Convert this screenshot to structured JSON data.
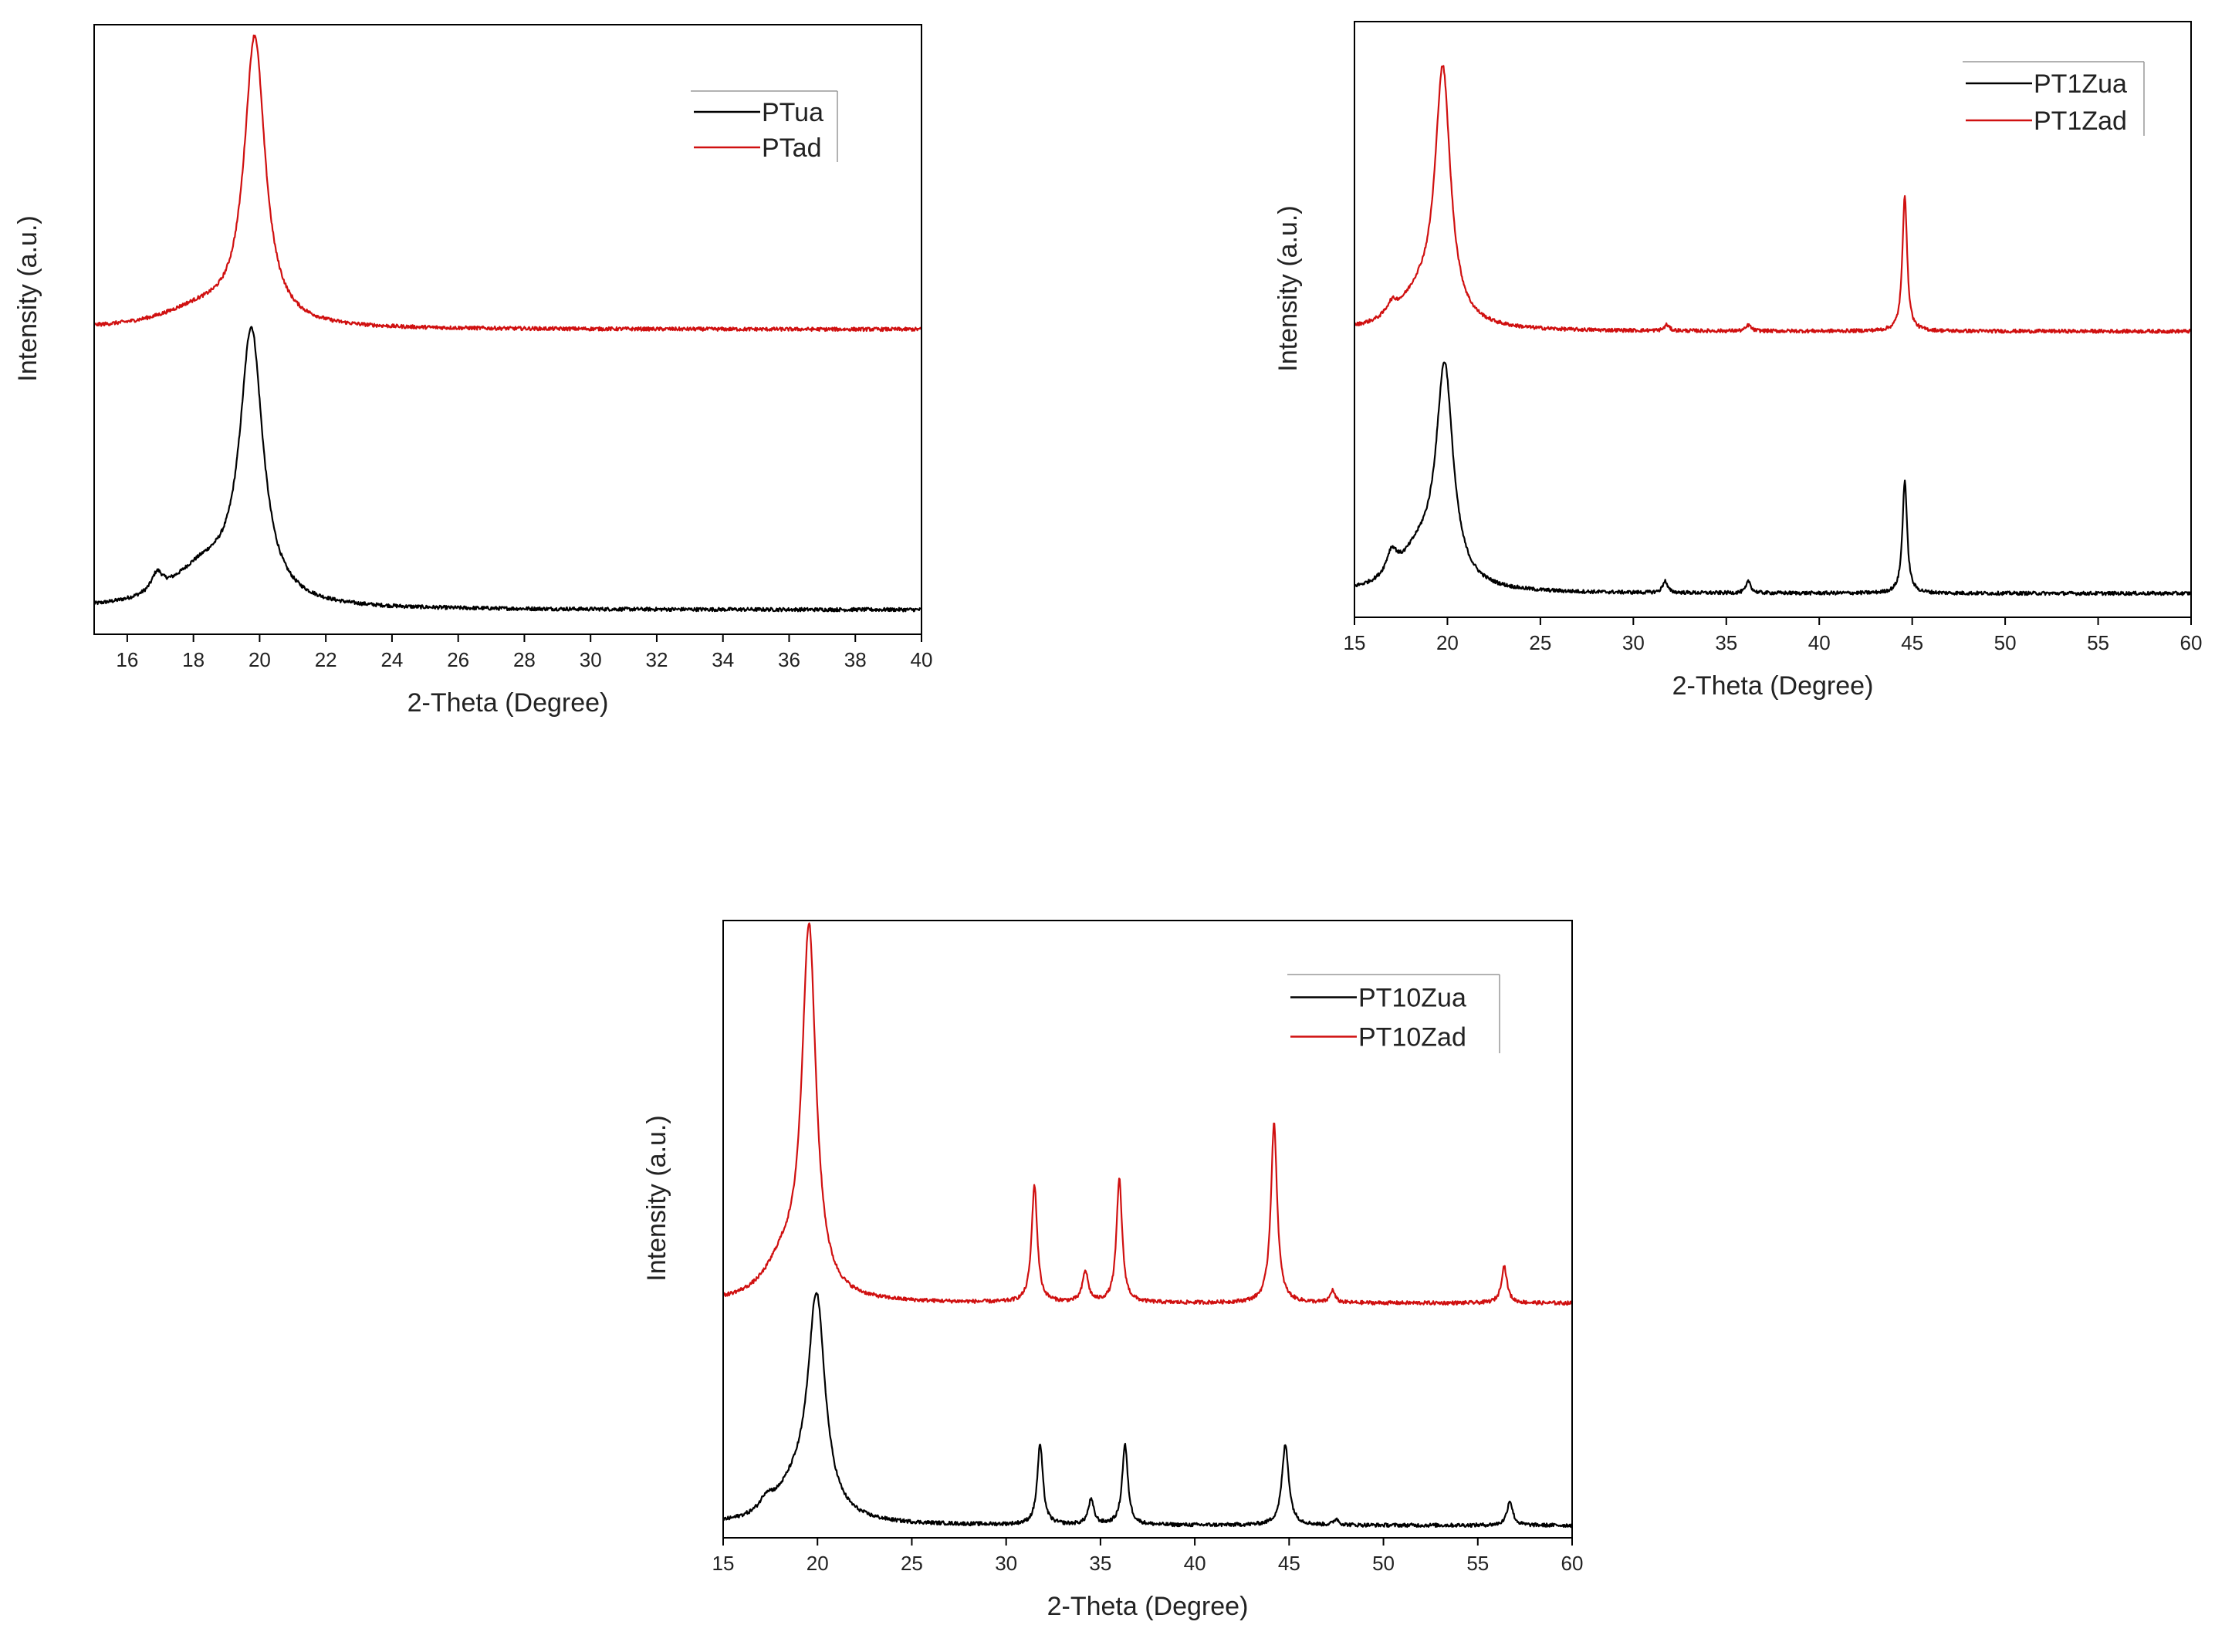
{
  "chart_data": [
    {
      "type": "line",
      "title": "",
      "xlabel": "2-Theta (Degree)",
      "ylabel": "Intensity (a.u.)",
      "xlim": [
        15,
        40
      ],
      "ylim": [
        0,
        1
      ],
      "y_ticks_shown": false,
      "grid": false,
      "legend_position": "top-right",
      "x_ticks": [
        16,
        18,
        20,
        22,
        24,
        26,
        28,
        30,
        32,
        34,
        36,
        38,
        40
      ],
      "series": [
        {
          "name": "PTua",
          "color": "#000000",
          "baseline": 0.04,
          "peaks": [
            [
              16.9,
              0.03,
              0.2
            ],
            [
              18.3,
              0.06,
              1.2
            ],
            [
              19.75,
              0.44,
              0.42
            ]
          ]
        },
        {
          "name": "PTad",
          "color": "#d01010",
          "baseline": 0.5,
          "peaks": [
            [
              18.2,
              0.03,
              1.4
            ],
            [
              19.85,
              0.47,
              0.38
            ]
          ]
        }
      ]
    },
    {
      "type": "line",
      "title": "",
      "xlabel": "2-Theta (Degree)",
      "ylabel": "Intensity (a.u.)",
      "xlim": [
        15,
        60
      ],
      "ylim": [
        0,
        1
      ],
      "y_ticks_shown": false,
      "grid": false,
      "legend_position": "top-right",
      "x_ticks": [
        15,
        20,
        25,
        30,
        35,
        40,
        45,
        50,
        55,
        60
      ],
      "series": [
        {
          "name": "PT1Zua",
          "color": "#000000",
          "baseline": 0.04,
          "peaks": [
            [
              17.0,
              0.04,
              0.35
            ],
            [
              18.5,
              0.06,
              1.3
            ],
            [
              19.85,
              0.36,
              0.55
            ],
            [
              31.7,
              0.02,
              0.15
            ],
            [
              36.2,
              0.02,
              0.15
            ],
            [
              44.6,
              0.19,
              0.15
            ]
          ]
        },
        {
          "name": "PT1Zad",
          "color": "#d01010",
          "baseline": 0.48,
          "peaks": [
            [
              17.0,
              0.02,
              0.35
            ],
            [
              18.5,
              0.05,
              1.3
            ],
            [
              19.75,
              0.42,
              0.5
            ],
            [
              31.8,
              0.01,
              0.15
            ],
            [
              36.2,
              0.01,
              0.15
            ],
            [
              44.6,
              0.23,
              0.15
            ]
          ]
        }
      ]
    },
    {
      "type": "line",
      "title": "",
      "xlabel": "2-Theta (Degree)",
      "ylabel": "Intensity (a.u.)",
      "xlim": [
        15,
        60
      ],
      "ylim": [
        0,
        1
      ],
      "y_ticks_shown": false,
      "grid": false,
      "legend_position": "top-right",
      "x_ticks": [
        15,
        20,
        25,
        30,
        35,
        40,
        45,
        50,
        55,
        60
      ],
      "series": [
        {
          "name": "PT10Zua",
          "color": "#000000",
          "baseline": 0.02,
          "peaks": [
            [
              17.3,
              0.02,
              0.4
            ],
            [
              18.8,
              0.05,
              1.3
            ],
            [
              19.95,
              0.35,
              0.55
            ],
            [
              31.8,
              0.13,
              0.18
            ],
            [
              34.5,
              0.04,
              0.18
            ],
            [
              36.3,
              0.13,
              0.18
            ],
            [
              44.8,
              0.13,
              0.22
            ],
            [
              47.5,
              0.01,
              0.15
            ],
            [
              56.7,
              0.04,
              0.18
            ]
          ]
        },
        {
          "name": "PT10Zad",
          "color": "#d01010",
          "baseline": 0.38,
          "peaks": [
            [
              18.2,
              0.06,
              1.2
            ],
            [
              19.55,
              0.59,
              0.45
            ],
            [
              31.5,
              0.19,
              0.18
            ],
            [
              34.2,
              0.05,
              0.18
            ],
            [
              36.0,
              0.2,
              0.18
            ],
            [
              44.2,
              0.29,
              0.2
            ],
            [
              47.3,
              0.02,
              0.15
            ],
            [
              56.4,
              0.06,
              0.18
            ]
          ]
        }
      ]
    }
  ]
}
